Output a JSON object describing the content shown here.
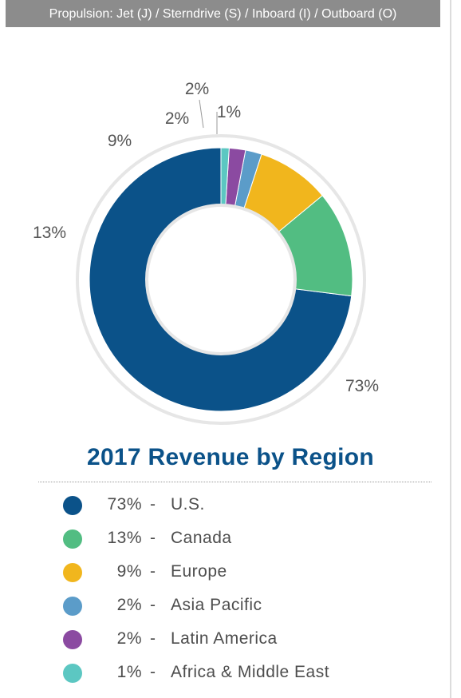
{
  "banner": {
    "text": "Propulsion: Jet (J) / Sterndrive (S) / Inboard (I) / Outboard (O)"
  },
  "chart_data": {
    "type": "pie",
    "title": "2017 Revenue by Region",
    "categories": [
      "U.S.",
      "Canada",
      "Europe",
      "Asia Pacific",
      "Latin America",
      "Africa & Middle East"
    ],
    "values": [
      73,
      13,
      9,
      2,
      2,
      1
    ],
    "labels": [
      "73%",
      "13%",
      "9%",
      "2%",
      "2%",
      "1%"
    ],
    "colors": [
      "#0b5289",
      "#52bd82",
      "#f1b61d",
      "#5b9cc9",
      "#8b4aa1",
      "#5cc7c2"
    ],
    "style": "donut",
    "legend": "bottom"
  },
  "legend": {
    "items": [
      {
        "pct": "73%",
        "dash": "-",
        "name": "U.S."
      },
      {
        "pct": "13%",
        "dash": "-",
        "name": "Canada"
      },
      {
        "pct": "9%",
        "dash": "-",
        "name": "Europe"
      },
      {
        "pct": "2%",
        "dash": "-",
        "name": "Asia Pacific"
      },
      {
        "pct": "2%",
        "dash": "-",
        "name": "Latin America"
      },
      {
        "pct": "1%",
        "dash": "-",
        "name": "Africa & Middle East"
      }
    ]
  }
}
